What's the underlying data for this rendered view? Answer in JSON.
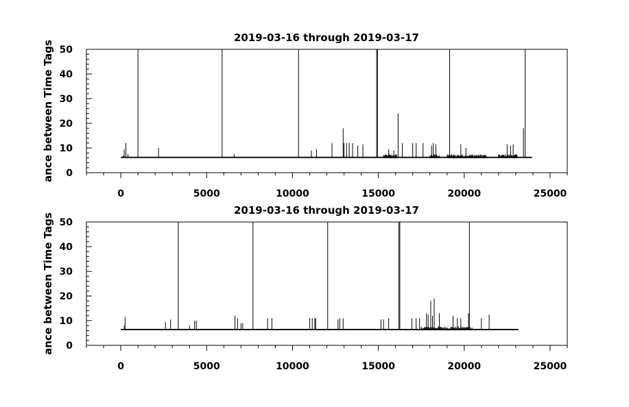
{
  "chart_data": [
    {
      "type": "line",
      "title": "2019-03-16 through 2019-03-17",
      "ylabel": "ance between Time Tags",
      "xlabel": "",
      "xlim": [
        -2000,
        26000
      ],
      "ylim": [
        0,
        50
      ],
      "x_ticks": [
        0,
        5000,
        10000,
        15000,
        20000,
        25000
      ],
      "x_tick_labels": [
        "0",
        "5000",
        "10000",
        "15000",
        "20000",
        "25000"
      ],
      "y_ticks": [
        0,
        10,
        20,
        30,
        40,
        50
      ],
      "y_tick_labels": [
        "0",
        "10",
        "20",
        "30",
        "40",
        "50"
      ],
      "grid": false,
      "baseline": 6.2,
      "x_end": 23950,
      "spikes": [
        {
          "x": 150,
          "y": 7
        },
        {
          "x": 200,
          "y": 9.5
        },
        {
          "x": 300,
          "y": 12
        },
        {
          "x": 420,
          "y": 7.5
        },
        {
          "x": 1000,
          "y": 50
        },
        {
          "x": 2200,
          "y": 10
        },
        {
          "x": 5900,
          "y": 50
        },
        {
          "x": 6600,
          "y": 7.5
        },
        {
          "x": 10350,
          "y": 50
        },
        {
          "x": 11100,
          "y": 9
        },
        {
          "x": 11400,
          "y": 9.5
        },
        {
          "x": 12300,
          "y": 12
        },
        {
          "x": 12950,
          "y": 18
        },
        {
          "x": 13000,
          "y": 12
        },
        {
          "x": 13150,
          "y": 12
        },
        {
          "x": 13300,
          "y": 12
        },
        {
          "x": 13500,
          "y": 12
        },
        {
          "x": 13800,
          "y": 11
        },
        {
          "x": 14100,
          "y": 11.5
        },
        {
          "x": 14900,
          "y": 50
        },
        {
          "x": 14950,
          "y": 50
        },
        {
          "x": 15600,
          "y": 9.5
        },
        {
          "x": 15900,
          "y": 9
        },
        {
          "x": 16150,
          "y": 24
        },
        {
          "x": 16400,
          "y": 12
        },
        {
          "x": 17000,
          "y": 12
        },
        {
          "x": 17200,
          "y": 12
        },
        {
          "x": 17600,
          "y": 12
        },
        {
          "x": 18100,
          "y": 11
        },
        {
          "x": 18200,
          "y": 12
        },
        {
          "x": 18350,
          "y": 11.5
        },
        {
          "x": 19150,
          "y": 50
        },
        {
          "x": 19800,
          "y": 11.5
        },
        {
          "x": 20100,
          "y": 10
        },
        {
          "x": 22500,
          "y": 11.5
        },
        {
          "x": 22700,
          "y": 11
        },
        {
          "x": 22850,
          "y": 11.5
        },
        {
          "x": 23450,
          "y": 18
        },
        {
          "x": 23550,
          "y": 50
        }
      ],
      "noisy_ranges": [
        [
          15300,
          16100
        ],
        [
          18000,
          18600
        ],
        [
          19000,
          21300
        ],
        [
          22000,
          23100
        ]
      ]
    },
    {
      "type": "line",
      "title": "2019-03-16 through 2019-03-17",
      "ylabel": "ance between Time Tags",
      "xlabel": "",
      "xlim": [
        -2000,
        26000
      ],
      "ylim": [
        0,
        50
      ],
      "x_ticks": [
        0,
        5000,
        10000,
        15000,
        20000,
        25000
      ],
      "x_tick_labels": [
        "0",
        "5000",
        "10000",
        "15000",
        "20000",
        "25000"
      ],
      "y_ticks": [
        0,
        10,
        20,
        30,
        40,
        50
      ],
      "y_tick_labels": [
        "0",
        "10",
        "20",
        "30",
        "40",
        "50"
      ],
      "grid": false,
      "baseline": 6.4,
      "x_end": 23150,
      "spikes": [
        {
          "x": 200,
          "y": 8
        },
        {
          "x": 250,
          "y": 11.5
        },
        {
          "x": 2600,
          "y": 9.5
        },
        {
          "x": 2900,
          "y": 10.5
        },
        {
          "x": 3350,
          "y": 50
        },
        {
          "x": 4000,
          "y": 8
        },
        {
          "x": 4300,
          "y": 10
        },
        {
          "x": 4400,
          "y": 10
        },
        {
          "x": 6650,
          "y": 12
        },
        {
          "x": 6800,
          "y": 11
        },
        {
          "x": 7000,
          "y": 9
        },
        {
          "x": 7100,
          "y": 9
        },
        {
          "x": 7700,
          "y": 50
        },
        {
          "x": 8550,
          "y": 11
        },
        {
          "x": 8800,
          "y": 11
        },
        {
          "x": 11000,
          "y": 11
        },
        {
          "x": 11150,
          "y": 11
        },
        {
          "x": 11300,
          "y": 11
        },
        {
          "x": 11350,
          "y": 11
        },
        {
          "x": 12050,
          "y": 50
        },
        {
          "x": 12650,
          "y": 10.5
        },
        {
          "x": 12750,
          "y": 11
        },
        {
          "x": 12950,
          "y": 11
        },
        {
          "x": 15150,
          "y": 10.5
        },
        {
          "x": 15300,
          "y": 10.5
        },
        {
          "x": 15600,
          "y": 11
        },
        {
          "x": 16200,
          "y": 50
        },
        {
          "x": 16250,
          "y": 50
        },
        {
          "x": 16950,
          "y": 11
        },
        {
          "x": 17200,
          "y": 11
        },
        {
          "x": 17400,
          "y": 11
        },
        {
          "x": 17800,
          "y": 13
        },
        {
          "x": 17900,
          "y": 12.5
        },
        {
          "x": 18050,
          "y": 18
        },
        {
          "x": 18150,
          "y": 12
        },
        {
          "x": 18250,
          "y": 19
        },
        {
          "x": 18550,
          "y": 13
        },
        {
          "x": 19350,
          "y": 12
        },
        {
          "x": 19600,
          "y": 11
        },
        {
          "x": 19800,
          "y": 11
        },
        {
          "x": 20300,
          "y": 50
        },
        {
          "x": 20250,
          "y": 13
        },
        {
          "x": 21000,
          "y": 11
        },
        {
          "x": 21450,
          "y": 12.5
        }
      ],
      "noisy_ranges": [
        [
          17500,
          20500
        ]
      ]
    }
  ]
}
